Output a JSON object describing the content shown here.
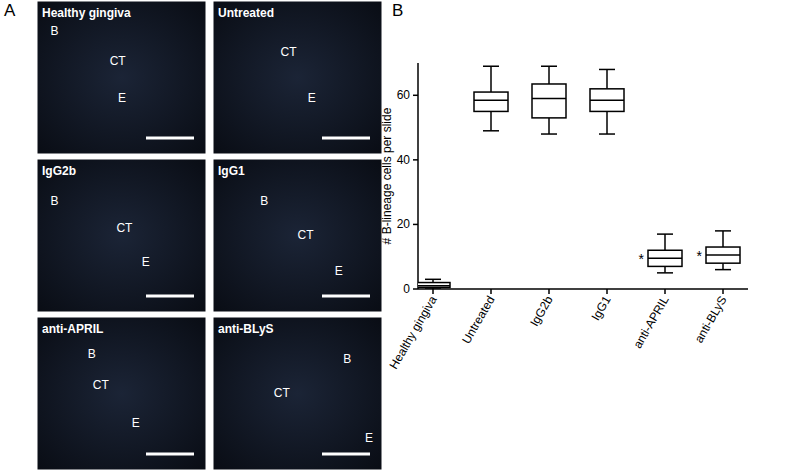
{
  "panel_a": {
    "label": "A",
    "images": [
      {
        "title": "Healthy gingiva",
        "regions": [
          "B",
          "CT",
          "E"
        ]
      },
      {
        "title": "Untreated",
        "regions": [
          "CT",
          "E"
        ]
      },
      {
        "title": "IgG2b",
        "regions": [
          "B",
          "CT",
          "E"
        ]
      },
      {
        "title": "IgG1",
        "regions": [
          "B",
          "CT",
          "E"
        ]
      },
      {
        "title": "anti-APRIL",
        "regions": [
          "B",
          "CT",
          "E"
        ]
      },
      {
        "title": "anti-BLyS",
        "regions": [
          "B",
          "CT",
          "E"
        ]
      }
    ]
  },
  "chart_data": {
    "type": "box",
    "title": "B",
    "y_label": "# B-lineage cells per slide",
    "categories": [
      "Healthy gingiva",
      "Untreated",
      "IgG2b",
      "IgG1",
      "anti-APRIL",
      "anti-BLyS"
    ],
    "min": [
      0,
      49,
      48,
      48,
      5,
      6
    ],
    "q1": [
      0.5,
      55,
      53,
      55,
      7,
      8
    ],
    "median": [
      1,
      58.5,
      59,
      58.5,
      9.5,
      10.5
    ],
    "q3": [
      2,
      61,
      63.5,
      62,
      12,
      13
    ],
    "max": [
      3,
      69,
      69,
      68,
      17,
      18
    ],
    "ylim": [
      0,
      70
    ],
    "yticks": [
      0,
      20,
      40,
      60
    ],
    "color": "#000000",
    "annotations": [
      {
        "text": "*",
        "category": "anti-APRIL"
      },
      {
        "text": "*",
        "category": "anti-BLyS"
      }
    ]
  }
}
